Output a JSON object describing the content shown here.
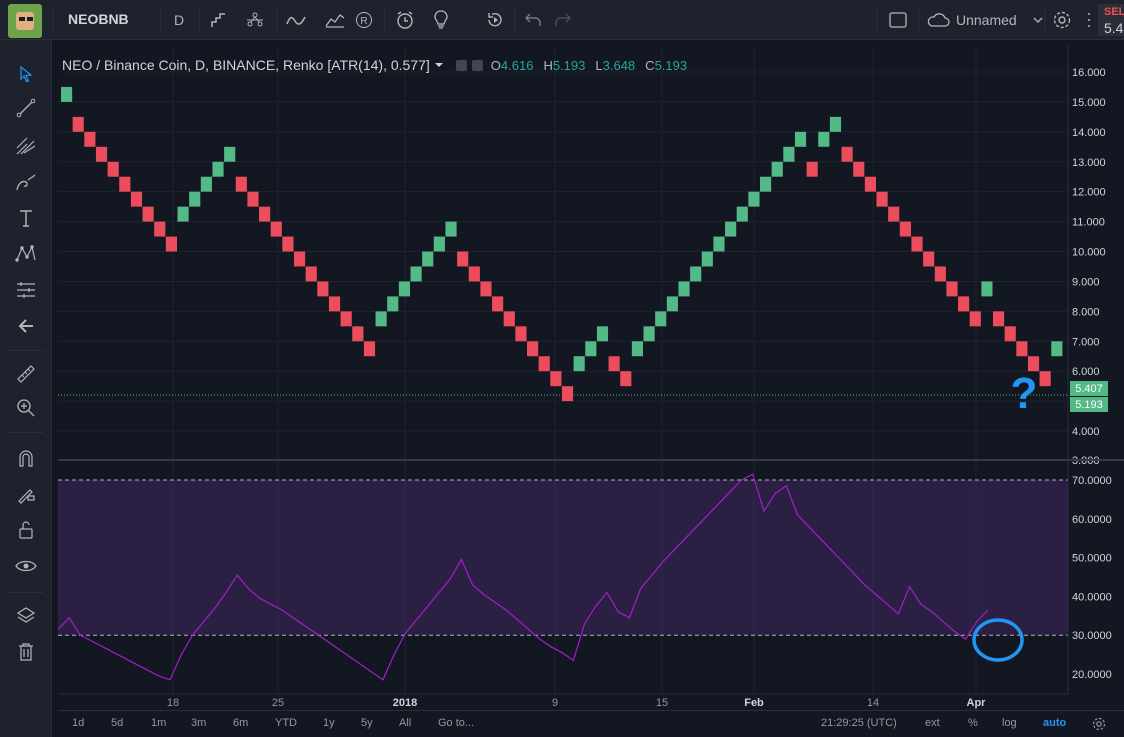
{
  "header": {
    "symbol": "NEOBNB",
    "interval": "D",
    "layout_name": "Unnamed",
    "sell_label": "SEL",
    "sell_price": "5.4"
  },
  "toolbar_icons": [
    "bar-style-icon",
    "compare-icon",
    "indicators-icon",
    "templates-icon",
    "replay-icon",
    "alert-icon",
    "ideas-icon",
    "redo-history-icon",
    "undo-icon",
    "redo-icon"
  ],
  "drawing_tools": [
    "cursor-icon",
    "trend-line-icon",
    "pitchfork-icon",
    "brush-icon",
    "text-icon",
    "pattern-icon",
    "measure-tool-icon",
    "back-arrow-icon",
    "ruler-icon",
    "zoom-in-icon",
    "magnet-icon",
    "lock-drawing-icon",
    "unlock-icon",
    "eye-icon",
    "layers-icon",
    "trash-icon"
  ],
  "legend": {
    "title": "NEO / Binance Coin, D, BINANCE, Renko [ATR(14), 0.577]",
    "o_label": "O",
    "o_value": "4.616",
    "h_label": "H",
    "h_value": "5.193",
    "l_label": "L",
    "l_value": "3.648",
    "c_label": "C",
    "c_value": "5.193"
  },
  "price_badges": {
    "ask": "5.407",
    "last": "5.193"
  },
  "annotation": {
    "text": "?"
  },
  "bottom": {
    "ranges": [
      "1d",
      "5d",
      "1m",
      "3m",
      "6m",
      "YTD",
      "1y",
      "5y",
      "All",
      "Go to..."
    ],
    "time": "21:29:25 (UTC)",
    "options": [
      "ext",
      "%",
      "log",
      "auto"
    ]
  },
  "colors": {
    "up": "#53b987",
    "down": "#eb4d5c",
    "oscillator": "#a020c8",
    "accent": "#2196f3"
  },
  "chart_data": {
    "type": "renko",
    "price_axis": {
      "labels": [
        "16.000",
        "15.000",
        "14.000",
        "13.000",
        "12.000",
        "11.000",
        "10.000",
        "9.000",
        "8.000",
        "7.000",
        "6.000",
        "5.000",
        "4.000",
        "3.000"
      ],
      "values": [
        16,
        15,
        14,
        13,
        12,
        11,
        10,
        9,
        8,
        7,
        6,
        5,
        4,
        3
      ]
    },
    "time_axis": {
      "labels": [
        "18",
        "25",
        "2018",
        "9",
        "15",
        "Feb",
        "14",
        "Apr"
      ],
      "bold_labels": [
        "2018",
        "Feb",
        "Apr"
      ]
    },
    "box_size": 0.577,
    "renko_bricks": [
      {
        "dir": "up",
        "count": 1
      },
      {
        "dir": "down",
        "count": 9
      },
      {
        "dir": "up",
        "count": 5
      },
      {
        "dir": "down",
        "count": 12
      },
      {
        "dir": "up",
        "count": 7
      },
      {
        "dir": "down",
        "count": 10
      },
      {
        "dir": "up",
        "count": 3
      },
      {
        "dir": "down",
        "count": 2
      },
      {
        "dir": "up",
        "count": 15
      },
      {
        "dir": "down",
        "count": 1
      },
      {
        "dir": "up",
        "count": 2
      },
      {
        "dir": "down",
        "count": 12
      },
      {
        "dir": "up",
        "count": 1
      },
      {
        "dir": "down",
        "count": 5
      },
      {
        "dir": "up",
        "count": 1
      }
    ],
    "renko_start": 15.0,
    "oscillator": {
      "axis_labels": [
        "70.0000",
        "60.0000",
        "50.0000",
        "40.0000",
        "30.0000",
        "20.0000"
      ],
      "axis_values": [
        70,
        60,
        50,
        40,
        30,
        20
      ],
      "overbought": 70,
      "oversold": 30,
      "values": [
        31.5,
        34.5,
        30,
        28.5,
        27,
        25.5,
        24,
        22.5,
        21,
        19.5,
        18.5,
        25,
        30,
        33.5,
        37,
        41,
        45.5,
        42,
        39.5,
        38,
        36.5,
        34.5,
        32.5,
        30.5,
        28.5,
        26.5,
        24.5,
        22.5,
        20.5,
        18.5,
        25,
        30.5,
        34,
        37.5,
        41,
        44.5,
        49.5,
        43,
        40.5,
        38.5,
        36.5,
        34,
        31.5,
        29,
        27,
        25.5,
        23.5,
        33,
        37.5,
        41,
        36,
        34.5,
        42,
        45.5,
        49,
        52,
        55,
        58,
        61,
        64,
        67,
        70,
        71.5,
        62,
        66.5,
        68.5,
        61,
        58,
        55,
        52,
        49,
        46,
        43,
        40.5,
        38,
        35.5,
        42.5,
        38,
        36,
        33.5,
        31,
        29,
        33.5,
        36.5
      ]
    }
  }
}
